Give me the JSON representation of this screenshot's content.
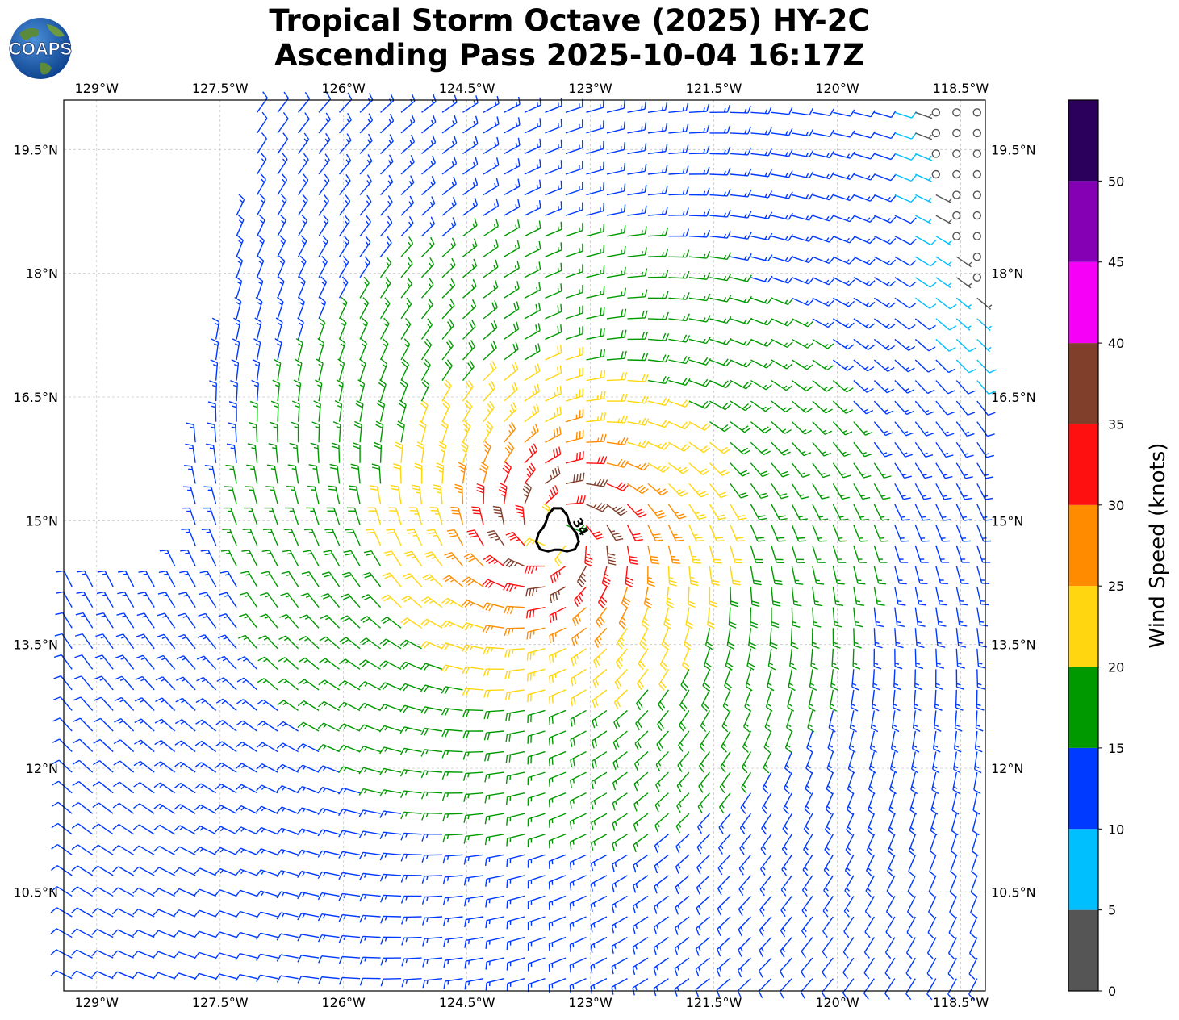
{
  "title": {
    "line1": "Tropical Storm Octave (2025) HY-2C",
    "line2": "Ascending Pass 2025-10-04 16:17Z"
  },
  "logo_text": "COAPS",
  "map": {
    "lon_ticks": [
      "129°W",
      "127.5°W",
      "126°W",
      "124.5°W",
      "123°W",
      "121.5°W",
      "120°W",
      "118.5°W"
    ],
    "lat_ticks": [
      "19.5°N",
      "18°N",
      "16.5°N",
      "15°N",
      "13.5°N",
      "12°N",
      "10.5°N"
    ],
    "lon_values": [
      -129,
      -127.5,
      -126,
      -124.5,
      -123,
      -121.5,
      -120,
      -118.5
    ],
    "lat_values": [
      19.5,
      18,
      16.5,
      15,
      13.5,
      12,
      10.5
    ],
    "lon_range": [
      -129.4,
      -118.2
    ],
    "lat_range": [
      9.3,
      20.1
    ],
    "gridlines": true,
    "storm_center": {
      "lon": -123.4,
      "lat": 14.85
    },
    "contour_label": "34"
  },
  "colorbar": {
    "label": "Wind Speed (knots)",
    "ticks": [
      "0",
      "5",
      "10",
      "15",
      "20",
      "25",
      "30",
      "35",
      "40",
      "45",
      "50"
    ],
    "bins": [
      {
        "min": 0,
        "max": 5,
        "color": "#555555"
      },
      {
        "min": 5,
        "max": 10,
        "color": "#00bfff"
      },
      {
        "min": 10,
        "max": 15,
        "color": "#0039ff"
      },
      {
        "min": 15,
        "max": 20,
        "color": "#009900"
      },
      {
        "min": 20,
        "max": 25,
        "color": "#ffd60f"
      },
      {
        "min": 25,
        "max": 30,
        "color": "#ff8c00"
      },
      {
        "min": 30,
        "max": 35,
        "color": "#ff1010"
      },
      {
        "min": 35,
        "max": 40,
        "color": "#7f3f2a"
      },
      {
        "min": 40,
        "max": 45,
        "color": "#f700f7"
      },
      {
        "min": 45,
        "max": 50,
        "color": "#8500b5"
      },
      {
        "min": 50,
        "max": 55,
        "color": "#2a005c"
      }
    ]
  }
}
